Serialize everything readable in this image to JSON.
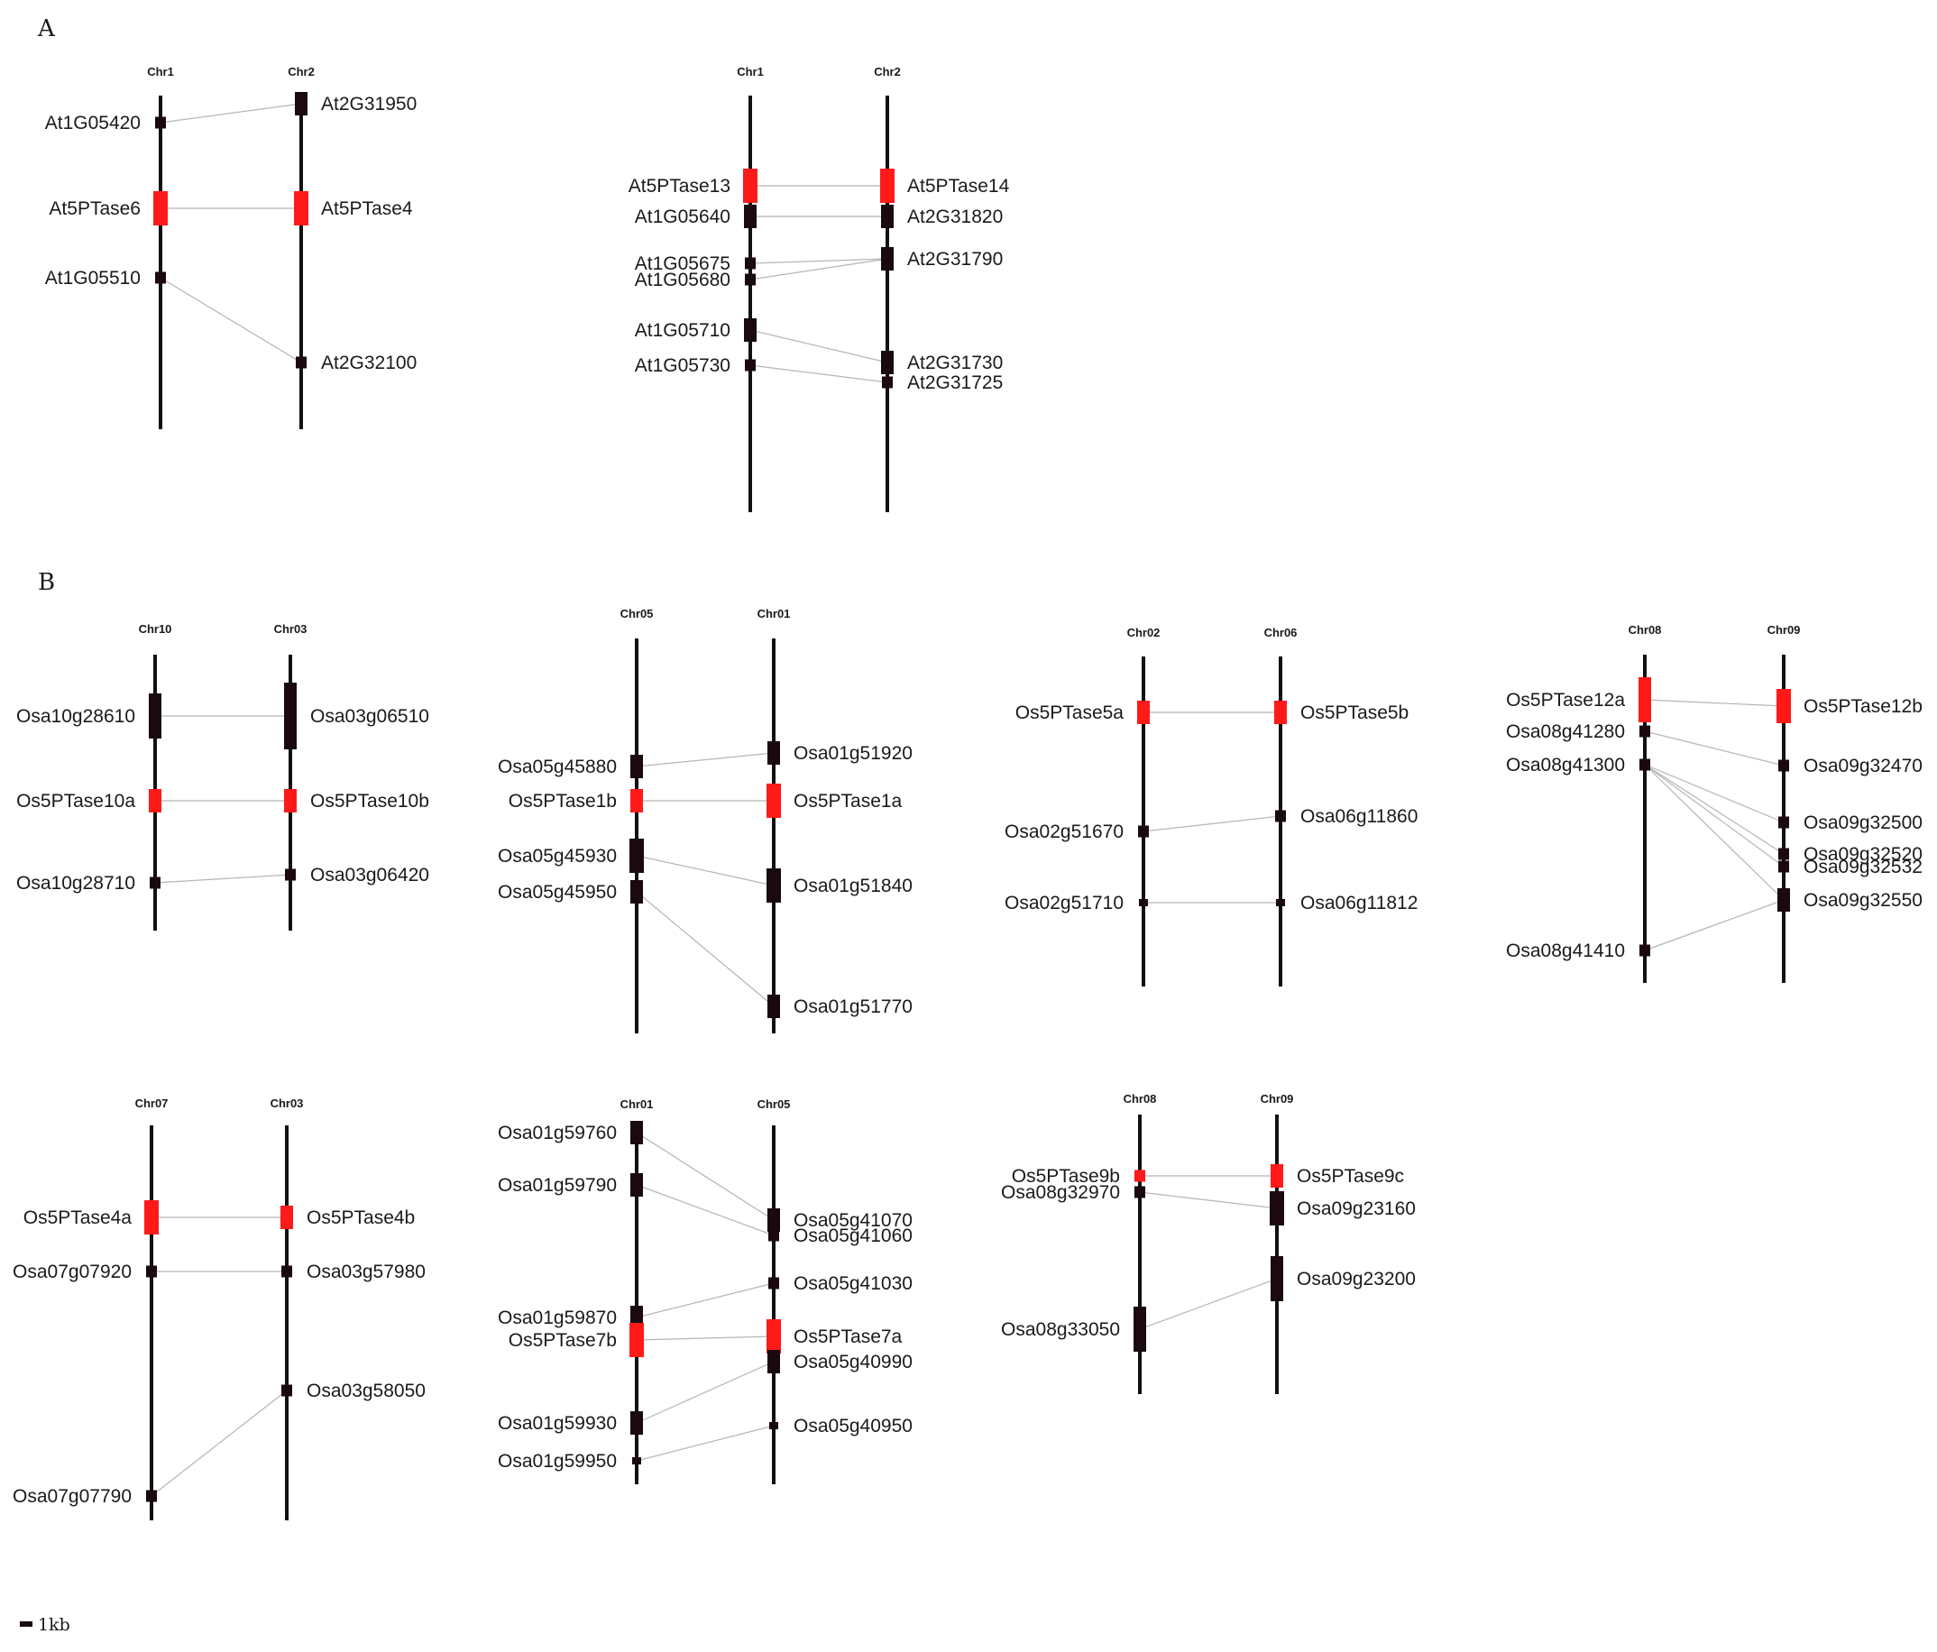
{
  "colors": {
    "highlight": "#ff1a1a",
    "gene": "#1a0a10",
    "chromosome": "#111111",
    "link": "#b5b5b5"
  },
  "panels": [
    {
      "label": "A"
    },
    {
      "label": "B"
    }
  ],
  "scale_bar": {
    "label": "1kb"
  },
  "blocks": [
    {
      "left": {
        "chr": "Chr1",
        "genes": [
          {
            "name": "At1G05420",
            "size": "s"
          },
          {
            "name": "At5PTase6",
            "size": "l",
            "highlight": true
          },
          {
            "name": "At1G05510",
            "size": "s"
          }
        ]
      },
      "right": {
        "chr": "Chr2",
        "genes": [
          {
            "name": "At2G31950",
            "size": "m"
          },
          {
            "name": "At5PTase4",
            "size": "l",
            "highlight": true
          },
          {
            "name": "At2G32100",
            "size": "s"
          }
        ]
      },
      "links": [
        [
          0,
          0
        ],
        [
          1,
          1
        ],
        [
          2,
          2
        ]
      ]
    },
    {
      "left": {
        "chr": "Chr1",
        "genes": [
          {
            "name": "At5PTase13",
            "size": "l",
            "highlight": true
          },
          {
            "name": "At1G05640",
            "size": "m"
          },
          {
            "name": "At1G05675",
            "size": "s"
          },
          {
            "name": "At1G05680",
            "size": "s"
          },
          {
            "name": "At1G05710",
            "size": "m"
          },
          {
            "name": "At1G05730",
            "size": "s"
          }
        ]
      },
      "right": {
        "chr": "Chr2",
        "genes": [
          {
            "name": "At5PTase14",
            "size": "l",
            "highlight": true
          },
          {
            "name": "At2G31820",
            "size": "m"
          },
          {
            "name": "At2G31790",
            "size": "m"
          },
          {
            "name": "At2G31730",
            "size": "m"
          },
          {
            "name": "At2G31725",
            "size": "s"
          }
        ]
      },
      "links": [
        [
          0,
          0
        ],
        [
          1,
          1
        ],
        [
          2,
          2
        ],
        [
          3,
          2
        ],
        [
          4,
          3
        ],
        [
          5,
          4
        ]
      ]
    },
    {
      "left": {
        "chr": "Chr10",
        "genes": [
          {
            "name": "Osa10g28610",
            "size": "xl"
          },
          {
            "name": "Os5PTase10a",
            "size": "m",
            "highlight": true
          },
          {
            "name": "Osa10g28710",
            "size": "s"
          }
        ]
      },
      "right": {
        "chr": "Chr03",
        "genes": [
          {
            "name": "Osa03g06510",
            "size": "xxl"
          },
          {
            "name": "Os5PTase10b",
            "size": "m",
            "highlight": true
          },
          {
            "name": "Osa03g06420",
            "size": "s"
          }
        ]
      },
      "links": [
        [
          0,
          0
        ],
        [
          1,
          1
        ],
        [
          2,
          2
        ]
      ]
    },
    {
      "left": {
        "chr": "Chr05",
        "genes": [
          {
            "name": "Osa05g45880",
            "size": "m"
          },
          {
            "name": "Os5PTase1b",
            "size": "m",
            "highlight": true
          },
          {
            "name": "Osa05g45930",
            "size": "l"
          },
          {
            "name": "Osa05g45950",
            "size": "m"
          }
        ]
      },
      "right": {
        "chr": "Chr01",
        "genes": [
          {
            "name": "Osa01g51920",
            "size": "m"
          },
          {
            "name": "Os5PTase1a",
            "size": "l",
            "highlight": true
          },
          {
            "name": "Osa01g51840",
            "size": "l"
          },
          {
            "name": "Osa01g51770",
            "size": "m"
          }
        ]
      },
      "links": [
        [
          0,
          0
        ],
        [
          1,
          1
        ],
        [
          2,
          2
        ],
        [
          3,
          3
        ]
      ]
    },
    {
      "left": {
        "chr": "Chr02",
        "genes": [
          {
            "name": "Os5PTase5a",
            "size": "m",
            "highlight": true
          },
          {
            "name": "Osa02g51670",
            "size": "s"
          },
          {
            "name": "Osa02g51710",
            "size": "xs"
          }
        ]
      },
      "right": {
        "chr": "Chr06",
        "genes": [
          {
            "name": "Os5PTase5b",
            "size": "m",
            "highlight": true
          },
          {
            "name": "Osa06g11860",
            "size": "s"
          },
          {
            "name": "Osa06g11812",
            "size": "xs"
          }
        ]
      },
      "links": [
        [
          0,
          0
        ],
        [
          1,
          1
        ],
        [
          2,
          2
        ]
      ]
    },
    {
      "left": {
        "chr": "Chr08",
        "genes": [
          {
            "name": "Os5PTase12a",
            "size": "xl",
            "highlight": true
          },
          {
            "name": "Osa08g41280",
            "size": "s"
          },
          {
            "name": "Osa08g41300",
            "size": "s"
          },
          {
            "name": "Osa08g41410",
            "size": "s"
          }
        ]
      },
      "right": {
        "chr": "Chr09",
        "genes": [
          {
            "name": "Os5PTase12b",
            "size": "l",
            "highlight": true
          },
          {
            "name": "Osa09g32470",
            "size": "s"
          },
          {
            "name": "Osa09g32500",
            "size": "s"
          },
          {
            "name": "Osa09g32520",
            "size": "s"
          },
          {
            "name": "Osa09g32532",
            "size": "s"
          },
          {
            "name": "Osa09g32550",
            "size": "m"
          }
        ]
      },
      "links": [
        [
          0,
          0
        ],
        [
          1,
          1
        ],
        [
          2,
          2
        ],
        [
          2,
          3
        ],
        [
          2,
          4
        ],
        [
          2,
          5
        ],
        [
          3,
          5
        ]
      ]
    },
    {
      "left": {
        "chr": "Chr07",
        "genes": [
          {
            "name": "Os5PTase4a",
            "size": "l",
            "highlight": true
          },
          {
            "name": "Osa07g07920",
            "size": "s"
          },
          {
            "name": "Osa07g07790",
            "size": "s"
          }
        ]
      },
      "right": {
        "chr": "Chr03",
        "genes": [
          {
            "name": "Os5PTase4b",
            "size": "m",
            "highlight": true
          },
          {
            "name": "Osa03g57980",
            "size": "s"
          },
          {
            "name": "Osa03g58050",
            "size": "s"
          }
        ]
      },
      "links": [
        [
          0,
          0
        ],
        [
          1,
          1
        ],
        [
          2,
          2
        ]
      ]
    },
    {
      "left": {
        "chr": "Chr01",
        "genes": [
          {
            "name": "Osa01g59760",
            "size": "m"
          },
          {
            "name": "Osa01g59790",
            "size": "m"
          },
          {
            "name": "Osa01g59870",
            "size": "m"
          },
          {
            "name": "Os5PTase7b",
            "size": "l",
            "highlight": true
          },
          {
            "name": "Osa01g59930",
            "size": "m"
          },
          {
            "name": "Osa01g59950",
            "size": "xs"
          }
        ]
      },
      "right": {
        "chr": "Chr05",
        "genes": [
          {
            "name": "Osa05g41070",
            "size": "m"
          },
          {
            "name": "Osa05g41060",
            "size": "s"
          },
          {
            "name": "Osa05g41030",
            "size": "s"
          },
          {
            "name": "Os5PTase7a",
            "size": "l",
            "highlight": true
          },
          {
            "name": "Osa05g40990",
            "size": "m"
          },
          {
            "name": "Osa05g40950",
            "size": "xs"
          }
        ]
      },
      "links": [
        [
          0,
          0
        ],
        [
          1,
          1
        ],
        [
          2,
          2
        ],
        [
          3,
          3
        ],
        [
          4,
          4
        ],
        [
          5,
          5
        ]
      ]
    },
    {
      "left": {
        "chr": "Chr08",
        "genes": [
          {
            "name": "Os5PTase9b",
            "size": "s",
            "highlight": true
          },
          {
            "name": "Osa08g32970",
            "size": "s"
          },
          {
            "name": "Osa08g33050",
            "size": "xl"
          }
        ]
      },
      "right": {
        "chr": "Chr09",
        "genes": [
          {
            "name": "Os5PTase9c",
            "size": "m",
            "highlight": true
          },
          {
            "name": "Osa09g23160",
            "size": "l"
          },
          {
            "name": "Osa09g23200",
            "size": "xl"
          }
        ]
      },
      "links": [
        [
          0,
          0
        ],
        [
          1,
          1
        ],
        [
          2,
          2
        ]
      ]
    }
  ]
}
